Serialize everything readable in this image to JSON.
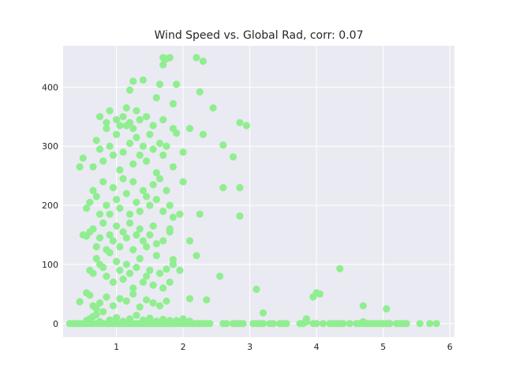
{
  "chart_data": {
    "type": "scatter",
    "title": "Wind Speed vs. Global Rad, corr: 0.07",
    "xlabel": "",
    "ylabel": "",
    "xlim": [
      0.2,
      6.07
    ],
    "ylim": [
      -23,
      470
    ],
    "xticks": [
      1,
      2,
      3,
      4,
      5,
      6
    ],
    "yticks": [
      0,
      100,
      200,
      300,
      400
    ],
    "grid": true,
    "colors": {
      "marker": "#90ee90",
      "axes_bg": "#eaeaf2",
      "grid": "#ffffff",
      "text": "#262626"
    },
    "points": [
      [
        0.3,
        0
      ],
      [
        0.35,
        0
      ],
      [
        0.4,
        0
      ],
      [
        0.45,
        0
      ],
      [
        0.5,
        0
      ],
      [
        0.55,
        0
      ],
      [
        0.6,
        0
      ],
      [
        0.65,
        0
      ],
      [
        0.7,
        0
      ],
      [
        0.75,
        0
      ],
      [
        0.8,
        0
      ],
      [
        0.85,
        0
      ],
      [
        0.9,
        0
      ],
      [
        0.95,
        0
      ],
      [
        1.0,
        0
      ],
      [
        1.05,
        0
      ],
      [
        1.1,
        0
      ],
      [
        1.15,
        0
      ],
      [
        1.2,
        0
      ],
      [
        1.25,
        0
      ],
      [
        1.3,
        0
      ],
      [
        1.35,
        0
      ],
      [
        1.4,
        0
      ],
      [
        1.45,
        0
      ],
      [
        1.5,
        0
      ],
      [
        1.55,
        0
      ],
      [
        1.6,
        0
      ],
      [
        1.65,
        0
      ],
      [
        1.7,
        0
      ],
      [
        1.75,
        0
      ],
      [
        1.8,
        0
      ],
      [
        1.85,
        0
      ],
      [
        1.9,
        0
      ],
      [
        1.95,
        0
      ],
      [
        2.0,
        0
      ],
      [
        2.05,
        0
      ],
      [
        2.1,
        0
      ],
      [
        2.15,
        0
      ],
      [
        2.2,
        0
      ],
      [
        2.25,
        0
      ],
      [
        2.3,
        0
      ],
      [
        2.35,
        0
      ],
      [
        2.4,
        0
      ],
      [
        2.6,
        0
      ],
      [
        2.65,
        0
      ],
      [
        2.75,
        0
      ],
      [
        2.8,
        0
      ],
      [
        2.85,
        0
      ],
      [
        2.9,
        0
      ],
      [
        3.05,
        0
      ],
      [
        3.1,
        0
      ],
      [
        3.15,
        0
      ],
      [
        3.2,
        0
      ],
      [
        3.3,
        0
      ],
      [
        3.35,
        0
      ],
      [
        3.45,
        0
      ],
      [
        3.5,
        0
      ],
      [
        3.55,
        0
      ],
      [
        3.75,
        0
      ],
      [
        3.8,
        0
      ],
      [
        3.95,
        0
      ],
      [
        4.0,
        0
      ],
      [
        4.1,
        0
      ],
      [
        4.2,
        0
      ],
      [
        4.25,
        0
      ],
      [
        4.3,
        0
      ],
      [
        4.35,
        0
      ],
      [
        4.4,
        0
      ],
      [
        4.5,
        0
      ],
      [
        4.6,
        0
      ],
      [
        4.65,
        0
      ],
      [
        4.7,
        0
      ],
      [
        4.75,
        0
      ],
      [
        4.8,
        0
      ],
      [
        4.85,
        0
      ],
      [
        4.9,
        0
      ],
      [
        4.95,
        0
      ],
      [
        5.0,
        0
      ],
      [
        5.05,
        0
      ],
      [
        5.1,
        0
      ],
      [
        5.2,
        0
      ],
      [
        5.25,
        0
      ],
      [
        5.3,
        0
      ],
      [
        5.35,
        0
      ],
      [
        5.55,
        0
      ],
      [
        5.7,
        0
      ],
      [
        5.8,
        0
      ],
      [
        0.55,
        5
      ],
      [
        0.6,
        8
      ],
      [
        0.65,
        12
      ],
      [
        0.7,
        15
      ],
      [
        0.75,
        3
      ],
      [
        0.8,
        20
      ],
      [
        0.9,
        6
      ],
      [
        1.0,
        10
      ],
      [
        1.1,
        4
      ],
      [
        1.2,
        8
      ],
      [
        1.3,
        14
      ],
      [
        1.4,
        6
      ],
      [
        1.5,
        9
      ],
      [
        1.6,
        4
      ],
      [
        1.7,
        7
      ],
      [
        1.8,
        5
      ],
      [
        1.9,
        5
      ],
      [
        2.0,
        8
      ],
      [
        2.1,
        4
      ],
      [
        3.85,
        8
      ],
      [
        3.85,
        3
      ],
      [
        4.7,
        3
      ],
      [
        0.45,
        37
      ],
      [
        0.55,
        52
      ],
      [
        0.6,
        48
      ],
      [
        0.65,
        30
      ],
      [
        0.7,
        25
      ],
      [
        0.75,
        35
      ],
      [
        0.85,
        45
      ],
      [
        0.95,
        30
      ],
      [
        1.05,
        42
      ],
      [
        1.15,
        38
      ],
      [
        1.25,
        50
      ],
      [
        1.35,
        28
      ],
      [
        1.45,
        40
      ],
      [
        1.55,
        35
      ],
      [
        1.65,
        30
      ],
      [
        1.75,
        38
      ],
      [
        2.1,
        42
      ],
      [
        2.35,
        40
      ],
      [
        3.95,
        45
      ],
      [
        4.0,
        52
      ],
      [
        4.05,
        50
      ],
      [
        4.7,
        30
      ],
      [
        5.05,
        25
      ],
      [
        3.2,
        18
      ],
      [
        3.1,
        58
      ],
      [
        4.35,
        93
      ],
      [
        2.55,
        80
      ],
      [
        0.6,
        90
      ],
      [
        0.65,
        85
      ],
      [
        0.7,
        110
      ],
      [
        0.75,
        100
      ],
      [
        0.8,
        95
      ],
      [
        0.85,
        80
      ],
      [
        0.9,
        120
      ],
      [
        0.95,
        70
      ],
      [
        1.0,
        105
      ],
      [
        1.05,
        90
      ],
      [
        1.1,
        75
      ],
      [
        1.15,
        100
      ],
      [
        1.2,
        85
      ],
      [
        1.25,
        60
      ],
      [
        1.3,
        95
      ],
      [
        1.35,
        110
      ],
      [
        1.4,
        70
      ],
      [
        1.45,
        80
      ],
      [
        1.5,
        90
      ],
      [
        1.55,
        65
      ],
      [
        1.6,
        115
      ],
      [
        1.65,
        85
      ],
      [
        1.7,
        60
      ],
      [
        1.75,
        92
      ],
      [
        1.8,
        70
      ],
      [
        1.85,
        100
      ],
      [
        1.95,
        90
      ],
      [
        2.1,
        140
      ],
      [
        2.2,
        115
      ],
      [
        1.85,
        108
      ],
      [
        0.5,
        150
      ],
      [
        0.55,
        148
      ],
      [
        0.6,
        155
      ],
      [
        0.65,
        160
      ],
      [
        0.7,
        130
      ],
      [
        0.75,
        145
      ],
      [
        0.8,
        170
      ],
      [
        0.85,
        125
      ],
      [
        0.9,
        150
      ],
      [
        0.95,
        140
      ],
      [
        1.0,
        165
      ],
      [
        1.05,
        130
      ],
      [
        1.1,
        155
      ],
      [
        1.15,
        145
      ],
      [
        1.2,
        170
      ],
      [
        1.25,
        125
      ],
      [
        1.3,
        150
      ],
      [
        1.35,
        160
      ],
      [
        1.4,
        140
      ],
      [
        1.45,
        130
      ],
      [
        1.5,
        150
      ],
      [
        1.55,
        165
      ],
      [
        1.6,
        135
      ],
      [
        1.7,
        140
      ],
      [
        1.8,
        160
      ],
      [
        1.8,
        155
      ],
      [
        0.55,
        195
      ],
      [
        0.6,
        205
      ],
      [
        0.65,
        225
      ],
      [
        0.7,
        215
      ],
      [
        0.75,
        185
      ],
      [
        0.8,
        240
      ],
      [
        0.85,
        200
      ],
      [
        0.9,
        185
      ],
      [
        0.95,
        230
      ],
      [
        1.0,
        210
      ],
      [
        1.05,
        195
      ],
      [
        1.1,
        245
      ],
      [
        1.15,
        220
      ],
      [
        1.2,
        185
      ],
      [
        1.25,
        240
      ],
      [
        1.3,
        205
      ],
      [
        1.35,
        190
      ],
      [
        1.4,
        225
      ],
      [
        1.45,
        215
      ],
      [
        1.5,
        200
      ],
      [
        1.55,
        235
      ],
      [
        1.6,
        210
      ],
      [
        1.65,
        245
      ],
      [
        1.7,
        190
      ],
      [
        1.75,
        225
      ],
      [
        1.8,
        200
      ],
      [
        1.85,
        180
      ],
      [
        1.95,
        185
      ],
      [
        2.0,
        240
      ],
      [
        2.25,
        185
      ],
      [
        2.85,
        182
      ],
      [
        2.85,
        230
      ],
      [
        2.6,
        230
      ],
      [
        0.45,
        265
      ],
      [
        0.5,
        280
      ],
      [
        0.65,
        265
      ],
      [
        0.7,
        310
      ],
      [
        0.75,
        295
      ],
      [
        0.8,
        275
      ],
      [
        0.85,
        330
      ],
      [
        0.9,
        300
      ],
      [
        0.95,
        285
      ],
      [
        1.0,
        320
      ],
      [
        1.05,
        260
      ],
      [
        1.1,
        290
      ],
      [
        1.15,
        335
      ],
      [
        1.2,
        305
      ],
      [
        1.25,
        270
      ],
      [
        1.3,
        315
      ],
      [
        1.35,
        285
      ],
      [
        1.4,
        300
      ],
      [
        1.45,
        275
      ],
      [
        1.5,
        320
      ],
      [
        1.55,
        295
      ],
      [
        1.6,
        255
      ],
      [
        1.65,
        305
      ],
      [
        1.7,
        285
      ],
      [
        1.75,
        300
      ],
      [
        1.85,
        265
      ],
      [
        2.0,
        290
      ],
      [
        2.3,
        320
      ],
      [
        2.6,
        302
      ],
      [
        2.75,
        282
      ],
      [
        0.75,
        350
      ],
      [
        0.85,
        340
      ],
      [
        0.9,
        360
      ],
      [
        1.0,
        345
      ],
      [
        1.05,
        335
      ],
      [
        1.1,
        350
      ],
      [
        1.15,
        365
      ],
      [
        1.2,
        340
      ],
      [
        1.25,
        330
      ],
      [
        1.3,
        360
      ],
      [
        1.35,
        345
      ],
      [
        1.45,
        350
      ],
      [
        1.55,
        335
      ],
      [
        1.7,
        345
      ],
      [
        1.85,
        330
      ],
      [
        1.9,
        322
      ],
      [
        2.1,
        330
      ],
      [
        2.45,
        365
      ],
      [
        2.85,
        340
      ],
      [
        2.95,
        335
      ],
      [
        1.2,
        395
      ],
      [
        1.25,
        410
      ],
      [
        1.4,
        412
      ],
      [
        1.65,
        405
      ],
      [
        1.6,
        382
      ],
      [
        1.85,
        372
      ],
      [
        1.9,
        405
      ],
      [
        2.25,
        392
      ],
      [
        1.7,
        450
      ],
      [
        1.75,
        448
      ],
      [
        1.8,
        450
      ],
      [
        1.7,
        438
      ],
      [
        2.2,
        450
      ],
      [
        2.3,
        444
      ]
    ]
  }
}
